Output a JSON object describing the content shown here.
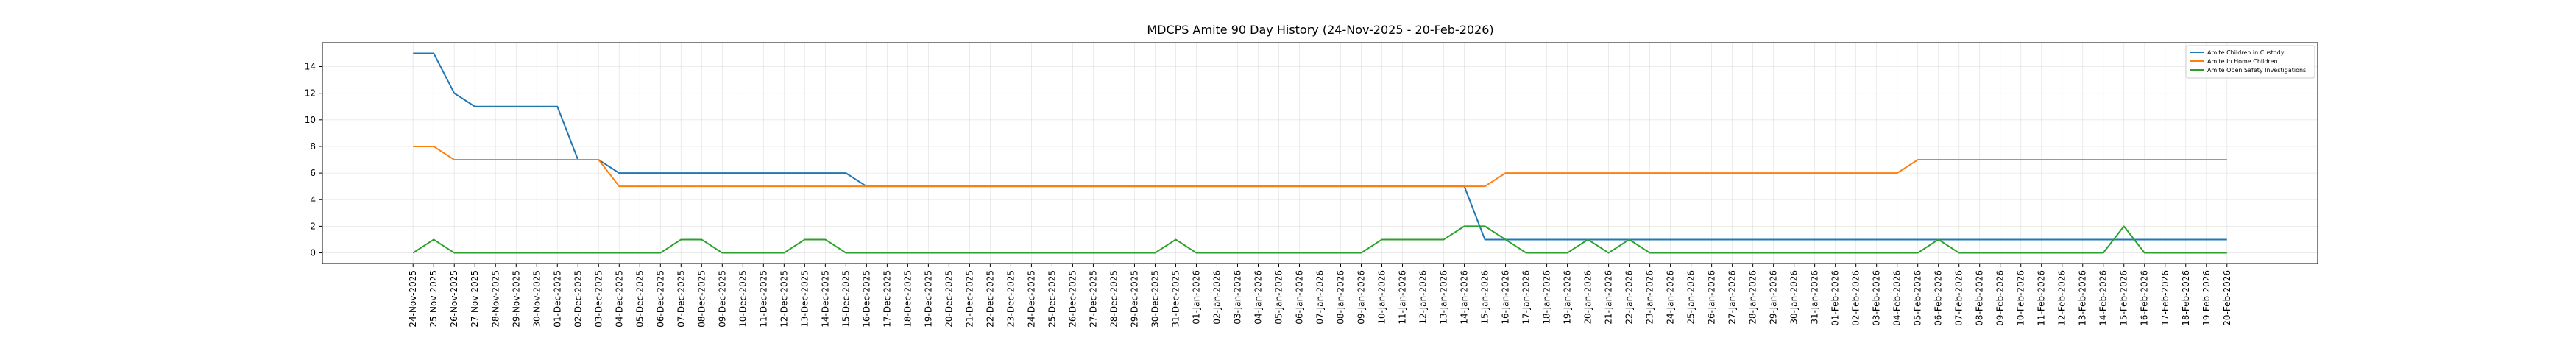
{
  "chart_data": {
    "type": "line",
    "title": "MDCPS Amite 90 Day History (24-Nov-2025 - 20-Feb-2026)",
    "xlabel": "",
    "ylabel": "",
    "ylim": [
      -0.8,
      15.8
    ],
    "yticks": [
      0,
      2,
      4,
      6,
      8,
      10,
      12,
      14
    ],
    "grid": true,
    "legend_position": "top-right",
    "x": [
      "24-Nov-2025",
      "25-Nov-2025",
      "26-Nov-2025",
      "27-Nov-2025",
      "28-Nov-2025",
      "29-Nov-2025",
      "30-Nov-2025",
      "01-Dec-2025",
      "02-Dec-2025",
      "03-Dec-2025",
      "04-Dec-2025",
      "05-Dec-2025",
      "06-Dec-2025",
      "07-Dec-2025",
      "08-Dec-2025",
      "09-Dec-2025",
      "10-Dec-2025",
      "11-Dec-2025",
      "12-Dec-2025",
      "13-Dec-2025",
      "14-Dec-2025",
      "15-Dec-2025",
      "16-Dec-2025",
      "17-Dec-2025",
      "18-Dec-2025",
      "19-Dec-2025",
      "20-Dec-2025",
      "21-Dec-2025",
      "22-Dec-2025",
      "23-Dec-2025",
      "24-Dec-2025",
      "25-Dec-2025",
      "26-Dec-2025",
      "27-Dec-2025",
      "28-Dec-2025",
      "29-Dec-2025",
      "30-Dec-2025",
      "31-Dec-2025",
      "01-Jan-2026",
      "02-Jan-2026",
      "03-Jan-2026",
      "04-Jan-2026",
      "05-Jan-2026",
      "06-Jan-2026",
      "07-Jan-2026",
      "08-Jan-2026",
      "09-Jan-2026",
      "10-Jan-2026",
      "11-Jan-2026",
      "12-Jan-2026",
      "13-Jan-2026",
      "14-Jan-2026",
      "15-Jan-2026",
      "16-Jan-2026",
      "17-Jan-2026",
      "18-Jan-2026",
      "19-Jan-2026",
      "20-Jan-2026",
      "21-Jan-2026",
      "22-Jan-2026",
      "23-Jan-2026",
      "24-Jan-2026",
      "25-Jan-2026",
      "26-Jan-2026",
      "27-Jan-2026",
      "28-Jan-2026",
      "29-Jan-2026",
      "30-Jan-2026",
      "31-Jan-2026",
      "01-Feb-2026",
      "02-Feb-2026",
      "03-Feb-2026",
      "04-Feb-2026",
      "05-Feb-2026",
      "06-Feb-2026",
      "07-Feb-2026",
      "08-Feb-2026",
      "09-Feb-2026",
      "10-Feb-2026",
      "11-Feb-2026",
      "12-Feb-2026",
      "13-Feb-2026",
      "14-Feb-2026",
      "15-Feb-2026",
      "16-Feb-2026",
      "17-Feb-2026",
      "18-Feb-2026",
      "19-Feb-2026",
      "20-Feb-2026"
    ],
    "series": [
      {
        "name": "Amite Children in Custody",
        "color": "#1f77b4",
        "values": [
          15,
          15,
          12,
          11,
          11,
          11,
          11,
          11,
          7,
          7,
          6,
          6,
          6,
          6,
          6,
          6,
          6,
          6,
          6,
          6,
          6,
          6,
          5,
          5,
          5,
          5,
          5,
          5,
          5,
          5,
          5,
          5,
          5,
          5,
          5,
          5,
          5,
          5,
          5,
          5,
          5,
          5,
          5,
          5,
          5,
          5,
          5,
          5,
          5,
          5,
          5,
          5,
          1,
          1,
          1,
          1,
          1,
          1,
          1,
          1,
          1,
          1,
          1,
          1,
          1,
          1,
          1,
          1,
          1,
          1,
          1,
          1,
          1,
          1,
          1,
          1,
          1,
          1,
          1,
          1,
          1,
          1,
          1,
          1,
          1,
          1,
          1,
          1,
          1
        ]
      },
      {
        "name": "Amite In Home Children",
        "color": "#ff7f0e",
        "values": [
          8,
          8,
          7,
          7,
          7,
          7,
          7,
          7,
          7,
          7,
          5,
          5,
          5,
          5,
          5,
          5,
          5,
          5,
          5,
          5,
          5,
          5,
          5,
          5,
          5,
          5,
          5,
          5,
          5,
          5,
          5,
          5,
          5,
          5,
          5,
          5,
          5,
          5,
          5,
          5,
          5,
          5,
          5,
          5,
          5,
          5,
          5,
          5,
          5,
          5,
          5,
          5,
          5,
          6,
          6,
          6,
          6,
          6,
          6,
          6,
          6,
          6,
          6,
          6,
          6,
          6,
          6,
          6,
          6,
          6,
          6,
          6,
          6,
          7,
          7,
          7,
          7,
          7,
          7,
          7,
          7,
          7,
          7,
          7,
          7,
          7,
          7,
          7,
          7
        ]
      },
      {
        "name": "Amite Open Safety Investigations",
        "color": "#2ca02c",
        "values": [
          0,
          1,
          0,
          0,
          0,
          0,
          0,
          0,
          0,
          0,
          0,
          0,
          0,
          1,
          1,
          0,
          0,
          0,
          0,
          1,
          1,
          0,
          0,
          0,
          0,
          0,
          0,
          0,
          0,
          0,
          0,
          0,
          0,
          0,
          0,
          0,
          0,
          1,
          0,
          0,
          0,
          0,
          0,
          0,
          0,
          0,
          0,
          1,
          1,
          1,
          1,
          2,
          2,
          1,
          0,
          0,
          0,
          1,
          0,
          1,
          0,
          0,
          0,
          0,
          0,
          0,
          0,
          0,
          0,
          0,
          0,
          0,
          0,
          0,
          1,
          0,
          0,
          0,
          0,
          0,
          0,
          0,
          0,
          2,
          0,
          0,
          0,
          0,
          0
        ]
      }
    ]
  }
}
